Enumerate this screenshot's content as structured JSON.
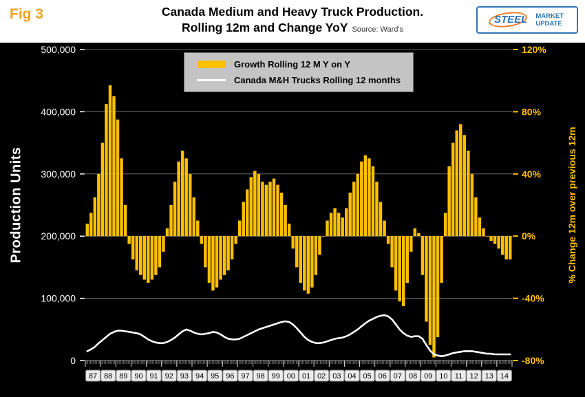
{
  "fig_label": "Fig 3",
  "title": {
    "line1": "Canada Medium and Heavy Truck Production.",
    "line2": "Rolling 12m and Change YoY",
    "source": "Source: Ward's"
  },
  "logo": {
    "steel": "STEEL",
    "market": "MARKET",
    "update": "UPDATE"
  },
  "legend": {
    "bar_label": "Growth Rolling 12 M Y on Y",
    "line_label": "Canada M&H Trucks Rolling 12 months"
  },
  "left_axis": {
    "title": "Production Units",
    "ticks": [
      "500,000",
      "400,000",
      "300,000",
      "200,000",
      "100,000",
      "0"
    ],
    "min": 0,
    "max": 500000
  },
  "right_axis": {
    "title": "% Change 12m over previous 12m",
    "ticks": [
      "120%",
      "80%",
      "40%",
      "0%",
      "-40%",
      "-80%"
    ],
    "min": -80,
    "max": 120
  },
  "x_labels": [
    "87",
    "88",
    "89",
    "90",
    "91",
    "92",
    "93",
    "94",
    "95",
    "96",
    "97",
    "98",
    "99",
    "00",
    "01",
    "02",
    "03",
    "04",
    "05",
    "06",
    "07",
    "08",
    "09",
    "10",
    "11",
    "12",
    "13",
    "14"
  ],
  "colors": {
    "bar": "#FFC000",
    "line": "#FFFFFF",
    "plot_bg": "#000000",
    "fig_label": "#EEA320",
    "logo_blue": "#2E75B6",
    "logo_orange": "#ED7D31"
  },
  "chart_data": {
    "type": "bar+line",
    "frequency": "quarterly",
    "points_per_year": 4,
    "x_start_year": 1987,
    "x_end_year": 2014,
    "left_axis_range": [
      0,
      500000
    ],
    "right_axis_range": [
      -80,
      120
    ],
    "categories_years": [
      "87",
      "88",
      "89",
      "90",
      "91",
      "92",
      "93",
      "94",
      "95",
      "96",
      "97",
      "98",
      "99",
      "00",
      "01",
      "02",
      "03",
      "04",
      "05",
      "06",
      "07",
      "08",
      "09",
      "10",
      "11",
      "12",
      "13",
      "14"
    ],
    "series": [
      {
        "name": "Growth Rolling 12 M Y on Y",
        "type": "bar",
        "axis": "right",
        "unit": "% YoY",
        "values": [
          8,
          15,
          25,
          40,
          60,
          85,
          97,
          90,
          75,
          50,
          20,
          -5,
          -15,
          -22,
          -25,
          -28,
          -30,
          -28,
          -25,
          -20,
          -10,
          5,
          20,
          35,
          48,
          55,
          50,
          40,
          25,
          10,
          -5,
          -20,
          -30,
          -35,
          -33,
          -28,
          -25,
          -22,
          -15,
          -5,
          10,
          22,
          30,
          38,
          42,
          40,
          35,
          33,
          35,
          37,
          33,
          28,
          20,
          8,
          -8,
          -20,
          -30,
          -35,
          -37,
          -33,
          -25,
          -12,
          0,
          10,
          15,
          18,
          15,
          12,
          18,
          28,
          35,
          40,
          48,
          52,
          50,
          45,
          35,
          22,
          10,
          -5,
          -20,
          -35,
          -42,
          -45,
          -30,
          -10,
          5,
          2,
          -25,
          -55,
          -70,
          -78,
          -65,
          -30,
          15,
          45,
          60,
          68,
          72,
          65,
          55,
          40,
          25,
          12,
          5,
          0,
          -3,
          -5,
          -8,
          -12,
          -15,
          -15
        ]
      },
      {
        "name": "Canada M&H Trucks Rolling 12 months",
        "type": "line",
        "axis": "left",
        "unit": "production units",
        "values": [
          15000,
          18000,
          22000,
          28000,
          33000,
          38000,
          43000,
          46000,
          48000,
          48000,
          47000,
          46000,
          45000,
          44000,
          42000,
          38000,
          34000,
          31000,
          29000,
          28000,
          28000,
          30000,
          33000,
          37000,
          42000,
          47000,
          50000,
          48000,
          45000,
          43000,
          42000,
          43000,
          44000,
          46000,
          45000,
          42000,
          38000,
          35000,
          34000,
          34000,
          35000,
          38000,
          41000,
          44000,
          47000,
          50000,
          52000,
          54000,
          56000,
          58000,
          60000,
          62000,
          63000,
          62000,
          58000,
          52000,
          45000,
          38000,
          33000,
          30000,
          28000,
          28000,
          29000,
          31000,
          33000,
          35000,
          36000,
          37000,
          39000,
          42000,
          46000,
          50000,
          55000,
          60000,
          64000,
          67000,
          70000,
          72000,
          73000,
          71000,
          66000,
          58000,
          50000,
          44000,
          40000,
          38000,
          39000,
          39000,
          35000,
          25000,
          16000,
          10000,
          8000,
          7000,
          8000,
          10000,
          12000,
          13000,
          14000,
          15000,
          15000,
          15000,
          14000,
          13000,
          12000,
          11000,
          11000,
          10000,
          10000,
          10000,
          10000,
          10000
        ]
      }
    ]
  }
}
